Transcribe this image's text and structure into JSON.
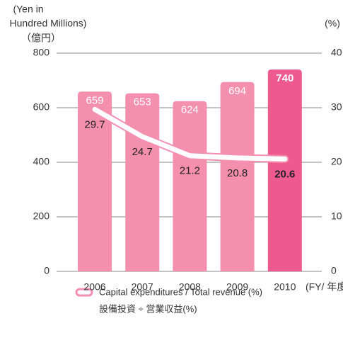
{
  "chart_data": {
    "type": "bar_line",
    "y_label": [
      "(Yen in",
      "Hundred Millions)",
      "（億円）"
    ],
    "y2_label": "(%)",
    "categories": [
      "2006",
      "2007",
      "2008",
      "2009",
      "2010"
    ],
    "x_unit": "(FY/ 年度)",
    "series": [
      {
        "type": "bar",
        "colors": [
          "#f48fb0",
          "#f48fb0",
          "#f48fb0",
          "#f48fb0",
          "#ef5a8e"
        ],
        "label_bold": [
          false,
          false,
          false,
          false,
          true
        ],
        "values": [
          659,
          653,
          624,
          694,
          740
        ]
      },
      {
        "type": "line",
        "axis": "y2",
        "name": "Capital expenditures / Total revenue (%)",
        "name_ja": "設備投資 ÷ 営業収益(%)",
        "color": "#f48fb0",
        "label_bold": [
          false,
          false,
          false,
          false,
          true
        ],
        "values": [
          29.7,
          24.7,
          21.2,
          20.8,
          20.6
        ]
      }
    ],
    "ylim": [
      0,
      800
    ],
    "yticks": [
      0,
      200,
      400,
      600,
      800
    ],
    "y2lim": [
      0,
      40
    ],
    "y2ticks": [
      0,
      10,
      20,
      30,
      40
    ],
    "grid": true
  }
}
